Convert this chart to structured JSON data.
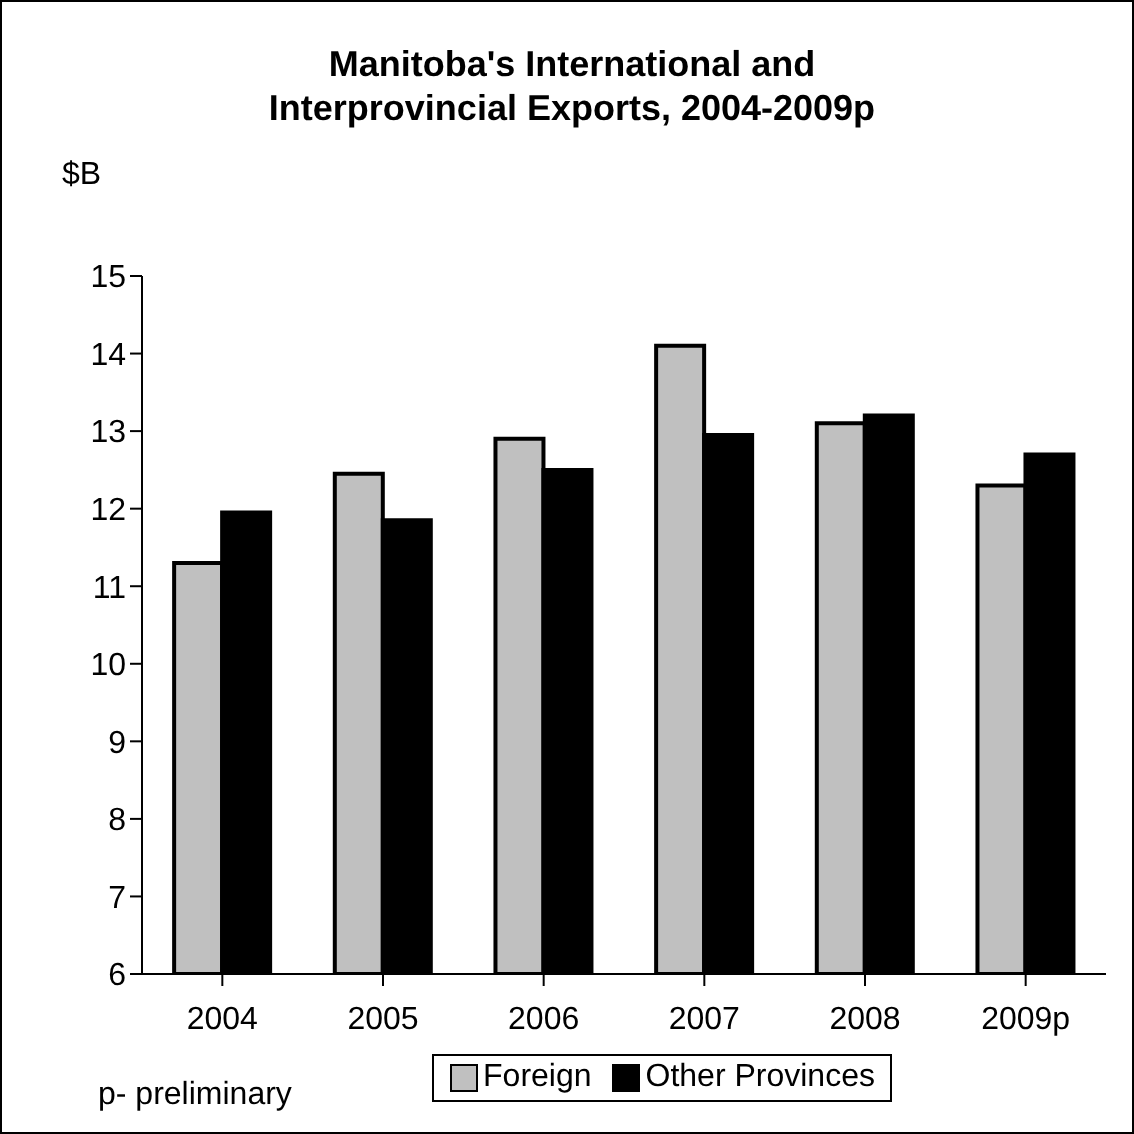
{
  "chart_data": {
    "type": "bar",
    "title": "Manitoba's International and Interprovincial Exports, 2004-2009p",
    "ylabel": "$B",
    "categories": [
      "2004",
      "2005",
      "2006",
      "2007",
      "2008",
      "2009p"
    ],
    "series": [
      {
        "name": "Foreign",
        "color": "#c0c0c0",
        "values": [
          11.3,
          12.45,
          12.9,
          14.1,
          13.1,
          12.3
        ]
      },
      {
        "name": "Other Provinces",
        "color": "#000000",
        "values": [
          11.95,
          11.85,
          12.5,
          12.95,
          13.2,
          12.7
        ]
      }
    ],
    "ylim": [
      6,
      15
    ],
    "yticks": [
      6,
      7,
      8,
      9,
      10,
      11,
      12,
      13,
      14,
      15
    ],
    "grid": false,
    "legend": "bottom",
    "annotations": [
      "p- preliminary"
    ]
  }
}
